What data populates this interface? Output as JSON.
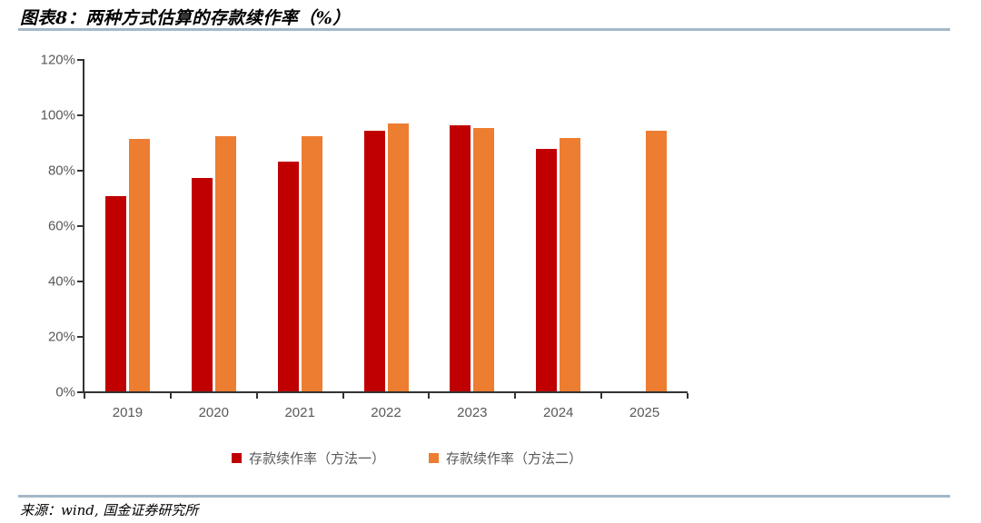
{
  "page": {
    "title": "图表8：两种方式估算的存款续作率（%）",
    "source": "来源：wind, 国金证券研究所"
  },
  "palette": {
    "series1_red": "#C00000",
    "series2_orange": "#ED7D31",
    "divider_blue": "#A3B8C8",
    "axis": "#333333",
    "tick_label_gray": "#595959"
  },
  "chart_data": {
    "type": "bar",
    "title": "图表8：两种方式估算的存款续作率（%）",
    "categories": [
      "2019",
      "2020",
      "2021",
      "2022",
      "2023",
      "2024",
      "2025"
    ],
    "series": [
      {
        "name": "存款续作率（方法一）",
        "color": "#C00000",
        "values": [
          70.5,
          77,
          83,
          94,
          96,
          87.5,
          null
        ]
      },
      {
        "name": "存款续作率（方法二）",
        "color": "#ED7D31",
        "values": [
          91,
          92,
          92,
          96.8,
          95,
          91.5,
          94
        ]
      }
    ],
    "xlabel": "",
    "ylabel": "",
    "ylim": [
      0,
      120
    ],
    "ytick_step": 20,
    "ytick_labels": [
      "0%",
      "20%",
      "40%",
      "60%",
      "80%",
      "100%",
      "120%"
    ],
    "grid": false,
    "legend_position": "bottom"
  }
}
